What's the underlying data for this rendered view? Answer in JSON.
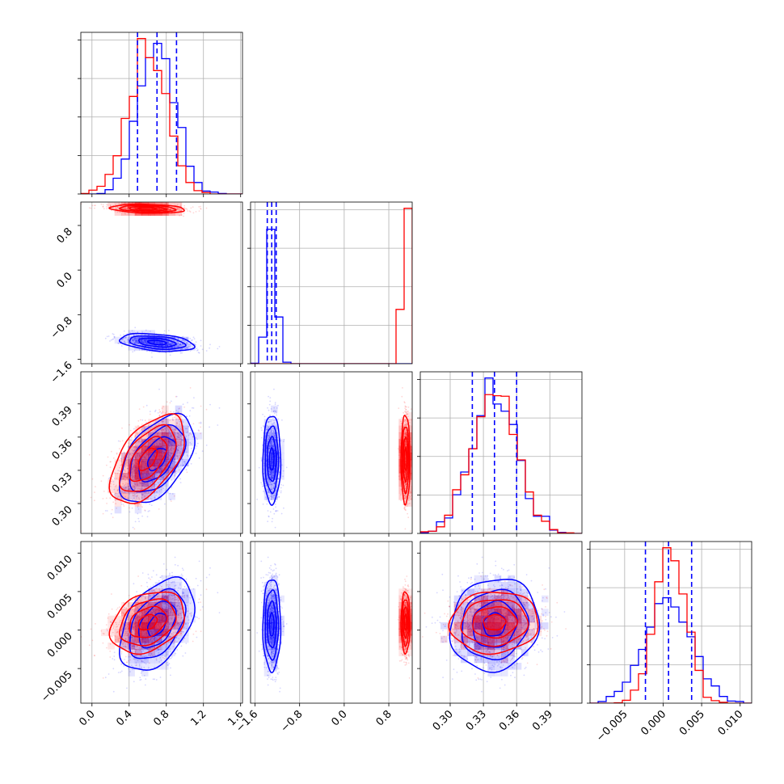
{
  "chart_data": {
    "type": "corner",
    "grid": true,
    "series": [
      {
        "name": "",
        "color": "#0000ff",
        "means": [
          0.7,
          -1.3,
          0.34,
          0.0007
        ],
        "stds": [
          0.2,
          0.08,
          0.02,
          0.003
        ],
        "corr": [
          [
            1,
            -0.35,
            0.5,
            0.45
          ],
          [
            -0.35,
            1,
            0,
            0
          ],
          [
            0.5,
            0,
            1,
            0.1
          ],
          [
            0.45,
            0,
            0.1,
            1
          ]
        ],
        "quantiles": [
          [
            0.49,
            0.7,
            0.91
          ],
          [
            -1.38,
            -1.3,
            -1.22
          ],
          [
            0.32,
            0.34,
            0.36
          ],
          [
            -0.0023,
            0.0007,
            0.0037
          ]
        ]
      },
      {
        "name": "",
        "color": "#ff0000",
        "means": [
          0.6,
          1.1,
          0.34,
          0.001
        ],
        "stds": [
          0.2,
          0.04,
          0.02,
          0.002
        ],
        "corr": [
          [
            1,
            -0.2,
            0.55,
            0.3
          ],
          [
            -0.2,
            1,
            0,
            0
          ],
          [
            0.55,
            0,
            1,
            0.05
          ],
          [
            0.3,
            0,
            0.05,
            1
          ]
        ]
      }
    ],
    "parameters": [
      {
        "range": [
          -0.12,
          1.62
        ],
        "ticks": [
          "0.0",
          "0.4",
          "0.8",
          "1.2",
          "1.6"
        ],
        "tick_values": [
          0.0,
          0.4,
          0.8,
          1.2,
          1.6
        ]
      },
      {
        "range": [
          -1.68,
          1.22
        ],
        "ticks": [
          "−1.6",
          "−0.8",
          "0.0",
          "0.8"
        ],
        "tick_values": [
          -1.6,
          -0.8,
          0.0,
          0.8
        ]
      },
      {
        "range": [
          0.273,
          0.419
        ],
        "ticks": [
          "0.30",
          "0.33",
          "0.36",
          "0.39"
        ],
        "tick_values": [
          0.3,
          0.33,
          0.36,
          0.39
        ]
      },
      {
        "range": [
          -0.0095,
          0.0115
        ],
        "ticks": [
          "−0.005",
          "0.000",
          "0.005",
          "0.010"
        ],
        "tick_values": [
          -0.005,
          0.0,
          0.005,
          0.01
        ]
      }
    ]
  }
}
